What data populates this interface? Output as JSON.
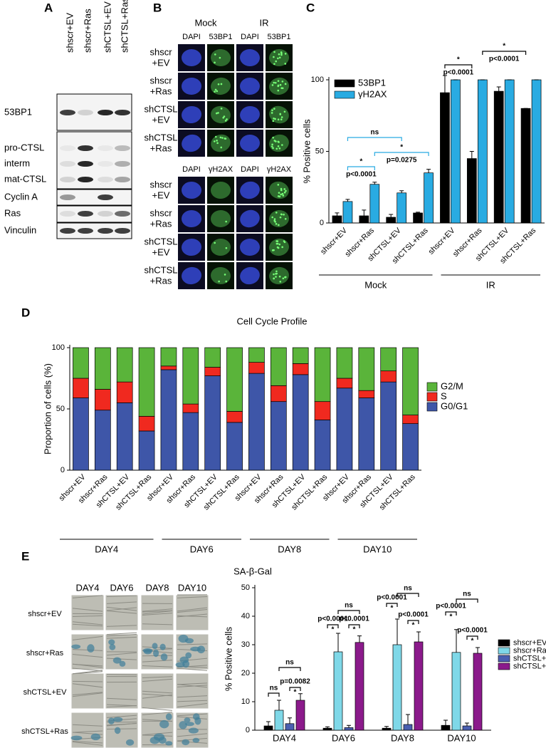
{
  "panels": [
    "A",
    "B",
    "C",
    "D",
    "E"
  ],
  "blot": {
    "lanes": [
      "shscr+EV",
      "shscr+Ras",
      "shCTSL+EV",
      "shCTSL+Ras"
    ],
    "rows": [
      "53BP1",
      "pro-CTSL",
      "interm",
      "mat-CTSL",
      "Cyclin A",
      "Ras",
      "Vinculin"
    ]
  },
  "micrographs": {
    "conditions": [
      "Mock",
      "IR"
    ],
    "blocks": [
      {
        "stains": [
          "DAPI",
          "53BP1",
          "DAPI",
          "53BP1"
        ],
        "rows": [
          [
            "shscr",
            "+EV"
          ],
          [
            "shscr",
            "+Ras"
          ],
          [
            "shCTSL",
            "+EV"
          ],
          [
            "shCTSL",
            "+Ras"
          ]
        ]
      },
      {
        "stains": [
          "DAPI",
          "γH2AX",
          "DAPI",
          "γH2AX"
        ],
        "rows": [
          [
            "shscr",
            "+EV"
          ],
          [
            "shscr",
            "+Ras"
          ],
          [
            "shCTSL",
            "+EV"
          ],
          [
            "shCTSL",
            "+Ras"
          ]
        ]
      }
    ]
  },
  "sa_gal": {
    "days": [
      "DAY4",
      "DAY6",
      "DAY8",
      "DAY10"
    ],
    "rows": [
      "shscr+EV",
      "shscr+Ras",
      "shCTSL+EV",
      "shCTSL+Ras"
    ]
  },
  "chart_data": [
    {
      "type": "bar",
      "ylabel": "% Positive cells",
      "categories": [
        "shscr+EV",
        "shscr+Ras",
        "shCTSL+EV",
        "shCTSL+Ras",
        "shscr+EV",
        "shscr+Ras",
        "shCTSL+EV",
        "shCTSL+Ras"
      ],
      "groups": [
        "Mock",
        "IR"
      ],
      "series": [
        {
          "name": "53BP1",
          "color": "#000000",
          "values": [
            5,
            5,
            4,
            7,
            91,
            45,
            92,
            80
          ],
          "errors": [
            2,
            4,
            2,
            0.5,
            12,
            5,
            3,
            0
          ]
        },
        {
          "name": "γH2AX",
          "color": "#29abe2",
          "values": [
            15,
            27,
            21,
            35,
            100,
            100,
            100,
            100
          ],
          "errors": [
            1.5,
            1.5,
            1.5,
            2.5,
            0,
            0,
            0,
            0
          ]
        }
      ],
      "ylim": [
        0,
        100
      ],
      "yticks": [
        0,
        50,
        100
      ],
      "annotations": [
        {
          "mark": "ns",
          "color": "#29abe2"
        },
        {
          "mark": "*",
          "p": "p<0.0001",
          "color": "#29abe2"
        },
        {
          "mark": "*",
          "p": "p=0.0275",
          "color": "#29abe2"
        },
        {
          "mark": "*",
          "p": "p<0.0001",
          "color": "#000000"
        },
        {
          "mark": "*",
          "p": "p<0.0001",
          "color": "#000000"
        }
      ]
    },
    {
      "type": "stacked_bar",
      "title": "Cell Cycle Profile",
      "ylabel": "Proportion of cells (%)",
      "categories": [
        "shscr+EV",
        "shscr+Ras",
        "shCTSL+EV",
        "shCTSL+Ras",
        "shscr+EV",
        "shscr+Ras",
        "shCTSL+EV",
        "shCTSL+Ras",
        "shscr+EV",
        "shscr+Ras",
        "shCTSL+EV",
        "shCTSL+Ras",
        "shscr+EV",
        "shscr+Ras",
        "shCTSL+EV",
        "shCTSL+Ras"
      ],
      "groups": [
        "DAY4",
        "DAY6",
        "DAY8",
        "DAY10"
      ],
      "series": [
        {
          "name": "G0/G1",
          "color": "#3e56a8",
          "values": [
            59,
            49,
            55,
            32,
            82,
            47,
            77,
            39,
            79,
            56,
            78,
            41,
            67,
            59,
            72,
            38
          ]
        },
        {
          "name": "S",
          "color": "#f0291f",
          "values": [
            16,
            17,
            17,
            12,
            3,
            7,
            7,
            9,
            9,
            13,
            9,
            15,
            8,
            6,
            9,
            7
          ]
        },
        {
          "name": "G2/M",
          "color": "#5ab43a",
          "values": [
            25,
            34,
            28,
            56,
            15,
            46,
            16,
            52,
            12,
            31,
            13,
            44,
            25,
            35,
            19,
            55
          ]
        }
      ],
      "ylim": [
        0,
        100
      ],
      "yticks": [
        0,
        50,
        100
      ]
    },
    {
      "type": "bar",
      "title": "SA-β-Gal",
      "ylabel": "% Positive cells",
      "categories": [
        "DAY4",
        "DAY6",
        "DAY8",
        "DAY10"
      ],
      "series": [
        {
          "name": "shscr+EV",
          "color": "#000000",
          "values": [
            1.5,
            0.7,
            0.7,
            1.7
          ],
          "errors": [
            1.5,
            0.5,
            0.6,
            1.8
          ]
        },
        {
          "name": "shscr+Ras",
          "color": "#7fd8e8",
          "values": [
            7,
            27.5,
            30,
            27.3
          ],
          "errors": [
            3.5,
            6.5,
            9,
            8
          ]
        },
        {
          "name": "shCTSL+EV",
          "color": "#4a5fb0",
          "values": [
            2.3,
            0.9,
            2,
            1.5
          ],
          "errors": [
            2,
            0.8,
            3.5,
            1
          ]
        },
        {
          "name": "shCTSL+Ras",
          "color": "#8b1a8b",
          "values": [
            10.5,
            30.8,
            31,
            27
          ],
          "errors": [
            2.3,
            2.3,
            3.5,
            2
          ]
        }
      ],
      "ylim": [
        0,
        50
      ],
      "yticks": [
        0,
        10,
        20,
        30,
        40,
        50
      ],
      "annotations": [
        {
          "mark": "ns"
        },
        {
          "mark": "ns"
        },
        {
          "mark": "*",
          "p": "p=0.0082"
        },
        {
          "mark": "*",
          "p": "p<0.0001"
        },
        {
          "mark": "*",
          "p": "p<0.0001"
        },
        {
          "mark": "ns"
        },
        {
          "mark": "*",
          "p": "p<0.0001"
        },
        {
          "mark": "ns"
        },
        {
          "mark": "*",
          "p": "p<0.0001"
        },
        {
          "mark": "*",
          "p": "p<0.0001"
        },
        {
          "mark": "ns"
        },
        {
          "mark": "*",
          "p": "p<0.0001"
        }
      ]
    }
  ]
}
